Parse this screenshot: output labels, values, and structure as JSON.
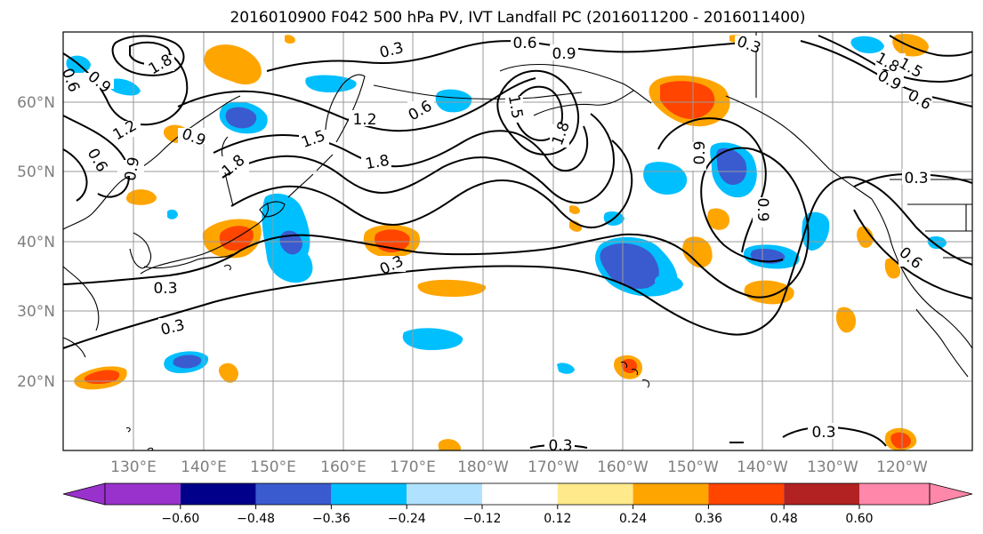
{
  "title": "2016010900 F042 500 hPa PV, IVT Landfall PC (2016011200 - 2016011400)",
  "map": {
    "lon_labels": [
      "130°E",
      "140°E",
      "150°E",
      "160°E",
      "170°E",
      "180°W",
      "170°W",
      "160°W",
      "150°W",
      "140°W",
      "130°W",
      "120°W"
    ],
    "lat_labels": [
      "60°N",
      "50°N",
      "40°N",
      "30°N",
      "20°N"
    ],
    "contour_labels": [
      "0.3",
      "0.6",
      "0.9",
      "1.2",
      "1.5",
      "1.8"
    ],
    "colors": {
      "neg_strong": "#3a5bd0",
      "neg_mid": "#00bfff",
      "neg_weak": "#b0e2ff",
      "pos_weak": "#ffe98a",
      "pos_mid": "#ffa500",
      "pos_strong": "#ff4500"
    }
  },
  "colorbar": {
    "ticks": [
      "−0.60",
      "−0.48",
      "−0.36",
      "−0.24",
      "−0.12",
      "0.12",
      "0.24",
      "0.36",
      "0.48",
      "0.60"
    ],
    "colors": [
      "#9932cc",
      "#00008b",
      "#3a5bd0",
      "#00bfff",
      "#b0e2ff",
      "#ffffff",
      "#ffe98a",
      "#ffa500",
      "#ff4500",
      "#b22222",
      "#ff88aa"
    ]
  }
}
